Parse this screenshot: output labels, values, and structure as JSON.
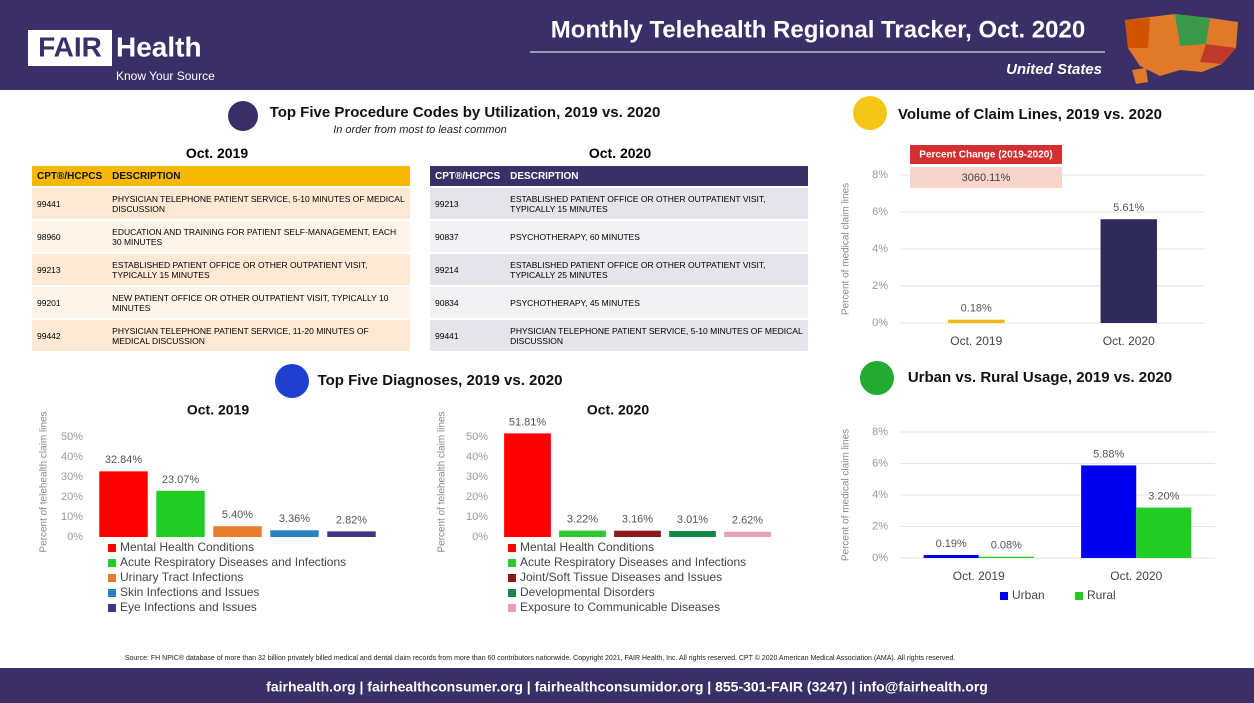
{
  "header": {
    "brand_1": "FAIR",
    "brand_2": "Health",
    "tagline": "Know Your Source",
    "title": "Monthly Telehealth Regional Tracker, Oct. 2020",
    "region": "United States"
  },
  "procedures": {
    "title": "Top Five Procedure Codes by Utilization, 2019 vs. 2020",
    "subtitle": "In order from most to least common",
    "tables": [
      {
        "title": "Oct. 2019",
        "columns": [
          "CPT®/HCPCS",
          "DESCRIPTION"
        ],
        "rows": [
          [
            "99441",
            "PHYSICIAN TELEPHONE PATIENT SERVICE, 5-10 MINUTES OF MEDICAL DISCUSSION"
          ],
          [
            "98960",
            "EDUCATION AND TRAINING FOR PATIENT SELF-MANAGEMENT, EACH 30 MINUTES"
          ],
          [
            "99213",
            "ESTABLISHED PATIENT OFFICE OR OTHER OUTPATIENT VISIT, TYPICALLY 15 MINUTES"
          ],
          [
            "99201",
            "NEW PATIENT OFFICE OR OTHER OUTPATIENT VISIT, TYPICALLY 10 MINUTES"
          ],
          [
            "99442",
            "PHYSICIAN TELEPHONE PATIENT SERVICE, 11-20 MINUTES OF MEDICAL DISCUSSION"
          ]
        ]
      },
      {
        "title": "Oct. 2020",
        "columns": [
          "CPT®/HCPCS",
          "DESCRIPTION"
        ],
        "rows": [
          [
            "99213",
            "ESTABLISHED PATIENT OFFICE OR OTHER OUTPATIENT VISIT, TYPICALLY 15 MINUTES"
          ],
          [
            "90837",
            "PSYCHOTHERAPY, 60 MINUTES"
          ],
          [
            "99214",
            "ESTABLISHED PATIENT OFFICE OR OTHER OUTPATIENT VISIT, TYPICALLY 25 MINUTES"
          ],
          [
            "90834",
            "PSYCHOTHERAPY, 45 MINUTES"
          ],
          [
            "99441",
            "PHYSICIAN TELEPHONE PATIENT SERVICE, 5-10 MINUTES OF MEDICAL DISCUSSION"
          ]
        ]
      }
    ]
  },
  "diagnoses": {
    "title": "Top Five Diagnoses, 2019 vs. 2020"
  },
  "chart_data": [
    {
      "type": "bar",
      "title": "Oct. 2019",
      "y_label": "Percent of telehealth claim lines",
      "categories": [
        "Mental Health Conditions",
        "Acute Respiratory Diseases and Infections",
        "Urinary Tract Infections",
        "Skin Infections and Issues",
        "Eye Infections and Issues"
      ],
      "values": [
        32.84,
        23.07,
        5.4,
        3.36,
        2.82
      ],
      "value_labels": [
        "32.84%",
        "23.07%",
        "5.40%",
        "3.36%",
        "2.82%"
      ],
      "colors": [
        "#ff0000",
        "#22cc22",
        "#e97b2f",
        "#2a7fc1",
        "#3b3783"
      ],
      "ylim": [
        0,
        55
      ],
      "yticks": [
        {
          "value": 0,
          "label": "0%"
        },
        {
          "value": 10,
          "label": "10%"
        },
        {
          "value": 20,
          "label": "20%"
        },
        {
          "value": 30,
          "label": "30%"
        },
        {
          "value": 40,
          "label": "40%"
        },
        {
          "value": 50,
          "label": "50%"
        }
      ],
      "grid": false
    },
    {
      "type": "bar",
      "title": "Oct. 2020",
      "y_label": "Percent of telehealth claim lines",
      "categories": [
        "Mental Health Conditions",
        "Acute Respiratory Diseases and Infections",
        "Joint/Soft Tissue Diseases and Issues",
        "Developmental Disorders",
        "Exposure to Communicable Diseases"
      ],
      "values": [
        51.81,
        3.22,
        3.16,
        3.01,
        2.62
      ],
      "value_labels": [
        "51.81%",
        "3.22%",
        "3.16%",
        "3.01%",
        "2.62%"
      ],
      "colors": [
        "#ff0000",
        "#2fc62f",
        "#8b1a1a",
        "#118844",
        "#e8a0b4"
      ],
      "ylim": [
        0,
        55
      ],
      "yticks": [
        {
          "value": 0,
          "label": "0%"
        },
        {
          "value": 10,
          "label": "10%"
        },
        {
          "value": 20,
          "label": "20%"
        },
        {
          "value": 30,
          "label": "30%"
        },
        {
          "value": 40,
          "label": "40%"
        },
        {
          "value": 50,
          "label": "50%"
        }
      ],
      "grid": false
    },
    {
      "type": "bar",
      "title": "Volume of Claim Lines, 2019 vs. 2020",
      "y_label": "Percent of medical claim lines",
      "categories": [
        "Oct. 2019",
        "Oct. 2020"
      ],
      "values": [
        0.18,
        5.61
      ],
      "value_labels": [
        "0.18%",
        "5.61%"
      ],
      "colors": [
        "#f5b800",
        "#2e2a5c"
      ],
      "ylim": [
        0,
        8
      ],
      "yticks": [
        {
          "value": 0,
          "label": "0%"
        },
        {
          "value": 2,
          "label": "2%"
        },
        {
          "value": 4,
          "label": "4%"
        },
        {
          "value": 6,
          "label": "6%"
        },
        {
          "value": 8,
          "label": "8%"
        }
      ],
      "grid": true,
      "annotation": {
        "title": "Percent Change (2019-2020)",
        "text": "3060.11%"
      }
    },
    {
      "type": "grouped_bar",
      "title": "Urban vs. Rural Usage, 2019 vs. 2020",
      "y_label": "Percent of medical claim lines",
      "categories": [
        "Oct. 2019",
        "Oct. 2020"
      ],
      "series": [
        {
          "name": "Urban",
          "color": "#0000ee",
          "values": [
            0.19,
            5.88
          ],
          "value_labels": [
            "0.19%",
            "5.88%"
          ]
        },
        {
          "name": "Rural",
          "color": "#22cc22",
          "values": [
            0.08,
            3.2
          ],
          "value_labels": [
            "0.08%",
            "3.20%"
          ]
        }
      ],
      "ylim": [
        0,
        8
      ],
      "yticks": [
        {
          "value": 0,
          "label": "0%"
        },
        {
          "value": 2,
          "label": "2%"
        },
        {
          "value": 4,
          "label": "4%"
        },
        {
          "value": 6,
          "label": "6%"
        },
        {
          "value": 8,
          "label": "8%"
        }
      ],
      "grid": true
    }
  ],
  "footer": {
    "source": "Source: FH NPIC® database of more than 32 billion privately billed medical and dental claim records from more than 60 contributors nationwide. Copyright 2021, FAIR Health, Inc. All rights reserved. CPT © 2020 American Medical Association (AMA). All rights reserved.",
    "contacts": "fairhealth.org | fairhealthconsumer.org | fairhealthconsumidor.org | 855-301-FAIR (3247) | info@fairhealth.org"
  }
}
